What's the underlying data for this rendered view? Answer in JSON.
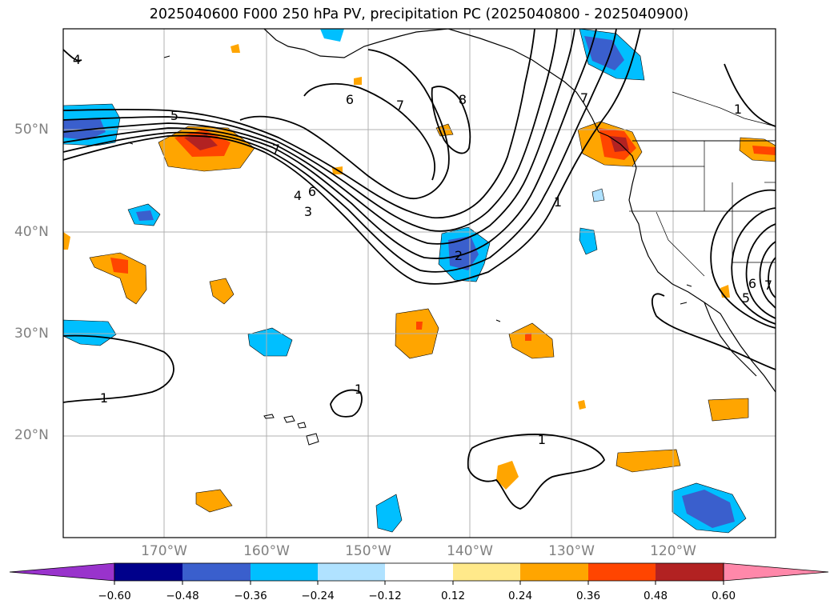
{
  "title": "2025040600 F000 250 hPa PV, precipitation PC (2025040800 - 2025040900)",
  "lat_labels": [
    "50°N",
    "40°N",
    "30°N",
    "20°N"
  ],
  "lon_labels": [
    "170°W",
    "160°W",
    "150°W",
    "140°W",
    "130°W",
    "120°W"
  ],
  "colorbar": {
    "ticks": [
      "−0.60",
      "−0.48",
      "−0.36",
      "−0.24",
      "−0.12",
      "0.12",
      "0.24",
      "0.36",
      "0.48",
      "0.60"
    ],
    "colors": [
      "#9933cc",
      "#00008b",
      "#3a5fcd",
      "#00bfff",
      "#b0e2ff",
      "#ffffff",
      "#ffe98a",
      "#ffa500",
      "#ff4500",
      "#b22222",
      "#ff88aa"
    ]
  },
  "contour_labels": [
    "5",
    "7",
    "6",
    "7",
    "8",
    "7",
    "6",
    "4",
    "3",
    "2",
    "1",
    "1",
    "1",
    "1",
    "1",
    "6",
    "5",
    "7",
    "4"
  ],
  "colors": {
    "contour": "#000000",
    "coast": "#000000",
    "grid": "#b0b0b0",
    "axis_label": "#808080"
  }
}
